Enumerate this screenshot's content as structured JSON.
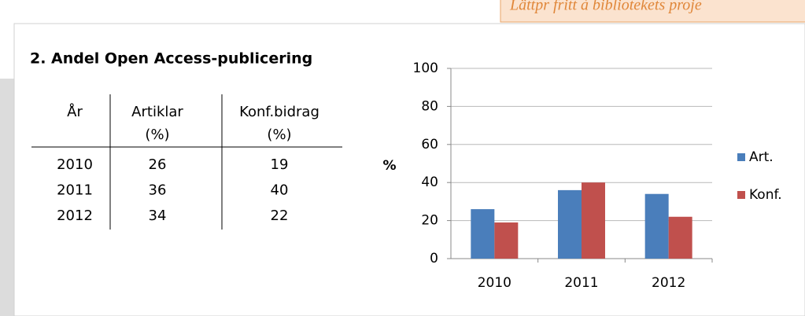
{
  "banner": "Lättpr fritt à bibliotekets proje",
  "title": "2. Andel Open Access-publicering",
  "table": {
    "header": [
      {
        "label": "År"
      },
      {
        "label": "Artiklar",
        "unit": "(%)"
      },
      {
        "label": "Konf.bidrag",
        "unit": "(%)"
      }
    ],
    "rows": [
      [
        "2010",
        26,
        19
      ],
      [
        "2011",
        36,
        40
      ],
      [
        "2012",
        34,
        22
      ]
    ]
  },
  "chart_data": {
    "type": "bar",
    "ylabel": "%",
    "categories": [
      "2010",
      "2011",
      "2012"
    ],
    "series": [
      {
        "name": "Art.",
        "color": "#4a7ebb",
        "values": [
          26,
          36,
          34
        ]
      },
      {
        "name": "Konf.",
        "color": "#c0504d",
        "values": [
          19,
          40,
          22
        ]
      }
    ],
    "ylim": [
      0,
      100
    ],
    "yticks": [
      0,
      20,
      40,
      60,
      80,
      100
    ],
    "grid": true,
    "legend": "right"
  }
}
